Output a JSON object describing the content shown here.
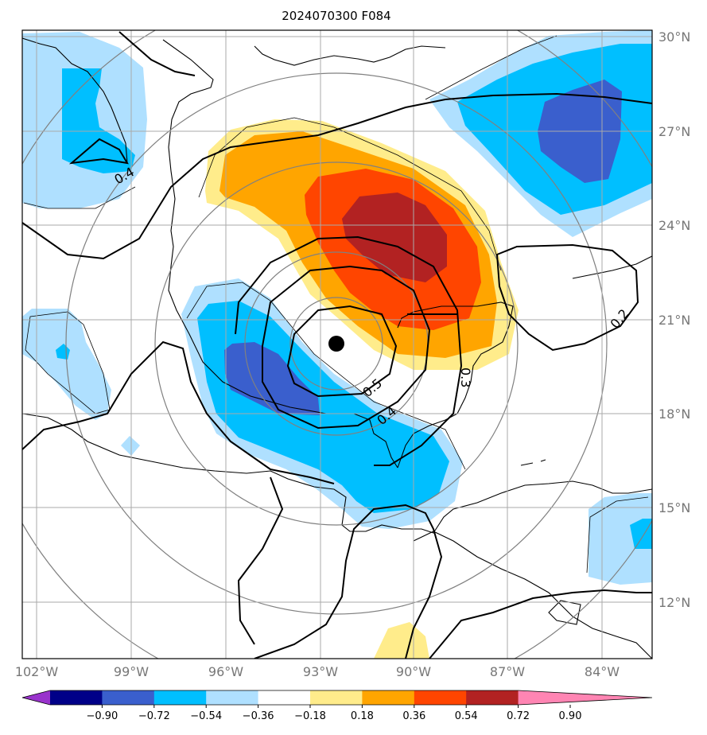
{
  "title": "2024070300 F084",
  "lat_labels": [
    "30°N",
    "27°N",
    "24°N",
    "21°N",
    "18°N",
    "15°N",
    "12°N"
  ],
  "lon_labels": [
    "102°W",
    "99°W",
    "96°W",
    "93°W",
    "90°W",
    "87°W",
    "84°W"
  ],
  "contour_labels": [
    "0.4",
    "0.5",
    "0.4",
    "0.3",
    "0.2"
  ],
  "colorbar": {
    "colors": [
      "#9933cc",
      "#000088",
      "#3a5fcd",
      "#00bfff",
      "#afe0ff",
      "#ffffff",
      "#ffec8b",
      "#ffa500",
      "#ff4500",
      "#b22222",
      "#ff85b3"
    ],
    "tick_labels": [
      "−0.90",
      "−0.72",
      "−0.54",
      "−0.36",
      "−0.18",
      "0.18",
      "0.36",
      "0.54",
      "0.72",
      "0.90"
    ]
  },
  "center_marker": "storm-center-dot"
}
